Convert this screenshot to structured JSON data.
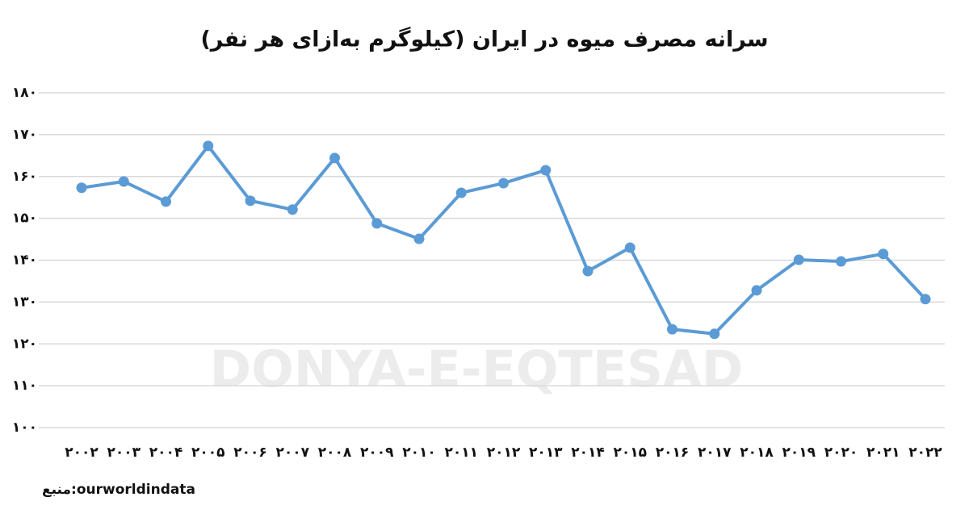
{
  "chart_data": {
    "type": "line",
    "title": "سرانه مصرف میوه در ایران (کیلوگرم به‌ازای هر نفر)",
    "source": "منبع:ourworldindata",
    "watermark": "DONYA-E-EQTESAD",
    "categories": [
      "۲۰۰۲",
      "۲۰۰۳",
      "۲۰۰۴",
      "۲۰۰۵",
      "۲۰۰۶",
      "۲۰۰۷",
      "۲۰۰۸",
      "۲۰۰۹",
      "۲۰۱۰",
      "۲۰۱۱",
      "۲۰۱۲",
      "۲۰۱۳",
      "۲۰۱۴",
      "۲۰۱۵",
      "۲۰۱۶",
      "۲۰۱۷",
      "۲۰۱۸",
      "۲۰۱۹",
      "۲۰۲۰",
      "۲۰۲۱",
      "۲۰۲۲"
    ],
    "series": [
      {
        "color": "#5b9bd5",
        "values": [
          157.3,
          158.8,
          154.0,
          167.3,
          154.2,
          152.1,
          164.4,
          148.8,
          145.1,
          156.1,
          158.4,
          161.5,
          137.4,
          143.0,
          123.5,
          122.4,
          132.8,
          140.1,
          139.7,
          141.5,
          130.7
        ]
      }
    ],
    "ylim": [
      100,
      180
    ],
    "yticks": [
      {
        "value": 100,
        "label": "۱۰۰"
      },
      {
        "value": 110,
        "label": "۱۱۰"
      },
      {
        "value": 120,
        "label": "۱۲۰"
      },
      {
        "value": 130,
        "label": "۱۳۰"
      },
      {
        "value": 140,
        "label": "۱۴۰"
      },
      {
        "value": 150,
        "label": "۱۵۰"
      },
      {
        "value": 160,
        "label": "۱۶۰"
      },
      {
        "value": 170,
        "label": "۱۷۰"
      },
      {
        "value": 180,
        "label": "۱۸۰"
      }
    ],
    "grid": true
  }
}
